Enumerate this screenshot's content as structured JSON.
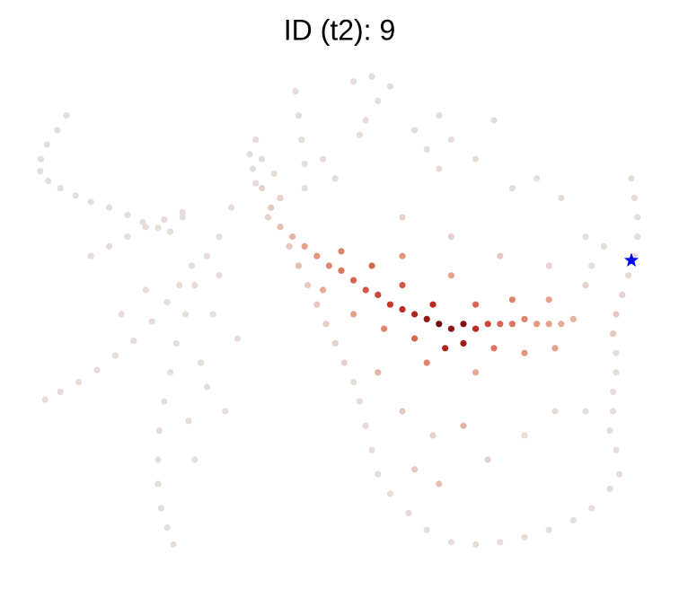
{
  "chart_data": {
    "type": "scatter",
    "title": "ID (t2): 9",
    "xlim": [
      0,
      100
    ],
    "ylim": [
      0,
      100
    ],
    "vlim": [
      0,
      1
    ],
    "cmap": [
      "#e6dcd8",
      "#e59a80",
      "#c73122",
      "#67000d"
    ],
    "x": [
      5,
      3.5,
      1.8,
      0.8,
      0.7,
      2,
      4,
      6.5,
      9,
      12,
      15,
      17.5,
      20,
      22,
      9,
      12,
      15,
      18,
      21,
      24,
      1.5,
      4,
      7,
      10,
      13,
      16,
      19,
      21.5,
      23.5,
      25.5,
      22.5,
      21.5,
      20.5,
      20,
      20,
      20.2,
      21,
      22,
      23,
      24.5,
      26,
      28,
      30,
      27,
      29,
      31,
      26,
      33,
      30,
      24,
      32,
      18,
      14,
      28,
      25,
      35,
      35.5,
      37,
      38.5,
      40,
      41.5,
      43,
      44.5,
      46,
      47.5,
      49,
      50.5,
      52,
      53,
      54,
      55,
      56,
      58,
      61,
      64,
      68,
      72,
      76,
      80,
      84,
      88,
      91,
      94,
      95.5,
      97.5,
      98,
      98.5,
      98.5,
      98,
      97,
      96,
      95,
      94.5,
      95,
      95,
      94.5,
      94.5,
      94,
      95,
      93,
      91,
      90,
      60,
      65,
      70,
      74,
      80,
      85,
      62,
      66,
      90,
      60,
      68,
      76,
      84,
      90,
      42.5,
      43,
      43.5,
      44,
      44,
      52,
      55,
      58,
      56,
      54,
      53,
      62,
      64,
      66,
      68,
      72,
      75,
      66,
      78,
      82,
      86,
      47,
      49,
      36,
      37,
      39,
      36,
      40,
      38,
      42,
      44,
      46,
      48,
      50,
      52,
      54,
      56,
      58,
      60,
      62,
      64,
      66,
      68,
      70,
      72,
      74,
      76,
      78,
      80,
      82,
      84,
      86,
      88,
      50,
      55,
      60,
      65,
      70,
      67,
      62,
      57,
      52,
      47,
      75,
      80,
      85,
      72,
      78,
      84,
      60,
      68,
      64,
      56,
      72
    ],
    "y": [
      91,
      88,
      85,
      82,
      79.5,
      77.5,
      76,
      74.5,
      73.2,
      72,
      70.5,
      69,
      67.8,
      67,
      62,
      64,
      66,
      68,
      69.5,
      71,
      32.4,
      34,
      36,
      38.5,
      41.5,
      44.5,
      48.5,
      52.5,
      56,
      60,
      2.5,
      6,
      10,
      15,
      20,
      26,
      32,
      38,
      44,
      50,
      56,
      62,
      66,
      40,
      50,
      30,
      20,
      45,
      58,
      70,
      72,
      55,
      50,
      35,
      28,
      83,
      80,
      76,
      72,
      68,
      64,
      60,
      56,
      52,
      48,
      44,
      40,
      36,
      32,
      27,
      22,
      17,
      13,
      9,
      5.5,
      3,
      2.5,
      3,
      4,
      5.5,
      7.5,
      10,
      14,
      17,
      78,
      74,
      70,
      66,
      62,
      58,
      54,
      50,
      46,
      42,
      38,
      34,
      30,
      26,
      22,
      64,
      60,
      56,
      30,
      25,
      27,
      20,
      25,
      30,
      18,
      15,
      30,
      70,
      66,
      62,
      60,
      66,
      96,
      91,
      86,
      81,
      76,
      98,
      99,
      97,
      94,
      90,
      87,
      88,
      84,
      80,
      86,
      82,
      90,
      91,
      76,
      78,
      74,
      82,
      78,
      86,
      82,
      79,
      77,
      74,
      70,
      66,
      64,
      62,
      60,
      59,
      57,
      55,
      54,
      52,
      51,
      50,
      49,
      48,
      47,
      48,
      47,
      48,
      48,
      48,
      49,
      48,
      48,
      48,
      49,
      63,
      60,
      56,
      52,
      44,
      43,
      45,
      47,
      50,
      55,
      43,
      42,
      43,
      52,
      53,
      53,
      62,
      58,
      40,
      38,
      38
    ],
    "values": [
      0,
      0,
      0,
      0,
      0,
      0,
      0,
      0,
      0,
      0,
      0,
      0,
      0,
      0,
      0,
      0,
      0,
      0,
      0,
      0,
      0,
      0,
      0,
      0,
      0,
      0,
      0,
      0,
      0,
      0,
      0,
      0,
      0,
      0,
      0,
      0,
      0,
      0,
      0,
      0,
      0,
      0,
      0,
      0,
      0,
      0,
      0,
      0,
      0,
      0,
      0,
      0,
      0,
      0,
      0,
      0,
      0,
      0.05,
      0.1,
      0.15,
      0.1,
      0.15,
      0.1,
      0.1,
      0.08,
      0.05,
      0.05,
      0,
      0,
      0,
      0,
      0,
      0,
      0,
      0,
      0,
      0,
      0,
      0,
      0,
      0,
      0,
      0,
      0,
      0,
      0,
      0,
      0,
      0,
      0.02,
      0.05,
      0.1,
      0.1,
      0,
      0,
      0,
      0,
      0,
      0,
      0,
      0,
      0.05,
      0.1,
      0.05,
      0.2,
      0.05,
      0,
      0,
      0.1,
      0.15,
      0,
      0.05,
      0.05,
      0.1,
      0.05,
      0,
      0,
      0,
      0,
      0,
      0,
      0,
      0,
      0,
      0,
      0,
      0,
      0,
      0,
      0,
      0,
      0,
      0,
      0,
      0,
      0,
      0,
      0,
      0,
      0,
      0,
      0,
      0,
      0.05,
      0.05,
      0.2,
      0.3,
      0.35,
      0.4,
      0.45,
      0.5,
      0.55,
      0.6,
      0.65,
      0.7,
      0.75,
      0.85,
      0.95,
      0.85,
      0.9,
      0.7,
      0.6,
      0.5,
      0.45,
      0.4,
      0.35,
      0.3,
      0.25,
      0.2,
      0.4,
      0.5,
      0.55,
      0.7,
      0.8,
      0.75,
      0.5,
      0.4,
      0.3,
      0.25,
      0.45,
      0.35,
      0.3,
      0.5,
      0.4,
      0.3,
      0.35,
      0.3,
      0.4,
      0.2,
      0.25
    ],
    "highlight": {
      "x": 97.5,
      "y": 61.1,
      "color": "#0000ff",
      "marker": "star"
    }
  }
}
